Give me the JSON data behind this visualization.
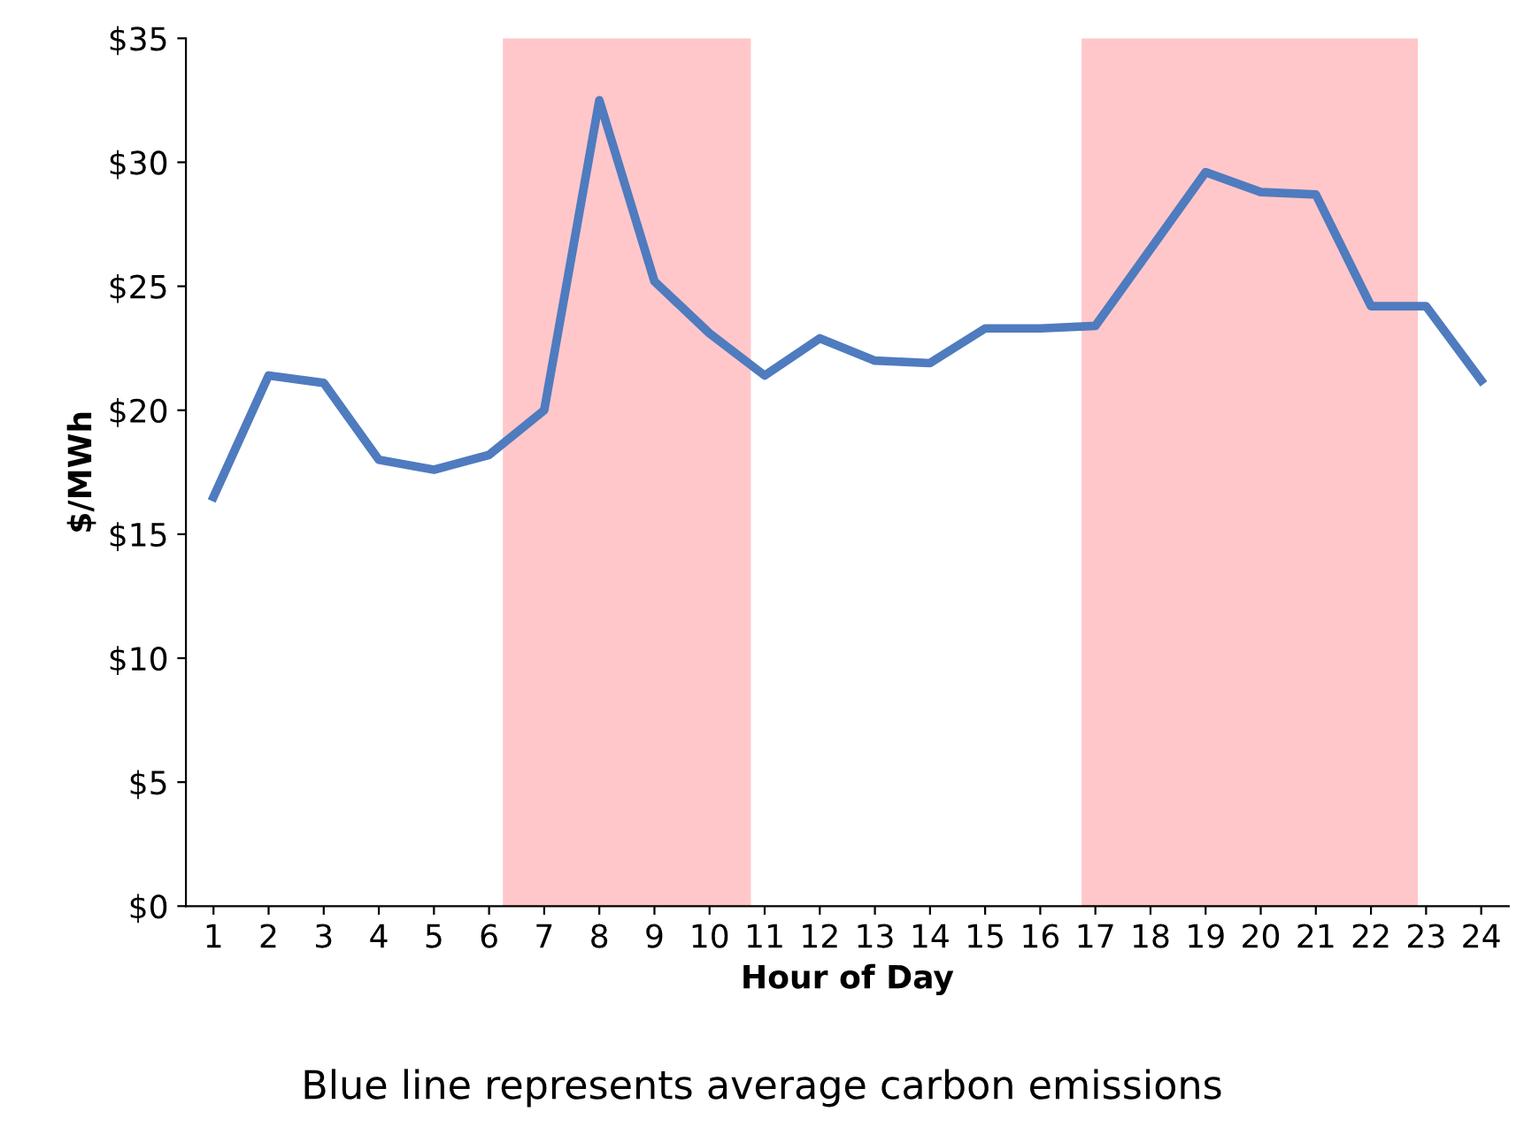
{
  "chart_data": {
    "type": "line",
    "xlabel": "Hour of Day",
    "ylabel": "$/MWh",
    "x": [
      1,
      2,
      3,
      4,
      5,
      6,
      7,
      8,
      9,
      10,
      11,
      12,
      13,
      14,
      15,
      16,
      17,
      18,
      19,
      20,
      21,
      22,
      23,
      24
    ],
    "series": [
      {
        "color": "#4f7bbf",
        "values": [
          16.5,
          21.4,
          21.1,
          18.0,
          17.6,
          18.2,
          20.0,
          32.5,
          25.2,
          23.1,
          21.4,
          22.9,
          22.0,
          21.9,
          23.3,
          23.3,
          23.4,
          26.5,
          29.6,
          28.8,
          28.7,
          24.2,
          24.2,
          21.2
        ]
      }
    ],
    "xlim": [
      0.5,
      24.5
    ],
    "xticks": [
      1,
      2,
      3,
      4,
      5,
      6,
      7,
      8,
      9,
      10,
      11,
      12,
      13,
      14,
      15,
      16,
      17,
      18,
      19,
      20,
      21,
      22,
      23,
      24
    ],
    "ylim": [
      0,
      35
    ],
    "yticks": [
      {
        "value": 0,
        "label": "$0"
      },
      {
        "value": 5,
        "label": "$5"
      },
      {
        "value": 10,
        "label": "$10"
      },
      {
        "value": 15,
        "label": "$15"
      },
      {
        "value": 20,
        "label": "$20"
      },
      {
        "value": 25,
        "label": "$25"
      },
      {
        "value": 30,
        "label": "$30"
      },
      {
        "value": 35,
        "label": "$35"
      }
    ],
    "bands": [
      {
        "axis": "x",
        "from": 6.25,
        "to": 10.75,
        "color": "#ffc7ca"
      },
      {
        "axis": "x",
        "from": 16.75,
        "to": 22.85,
        "color": "#ffc7ca"
      }
    ],
    "grid": false,
    "legend": false,
    "marker": "none",
    "line_style": "solid",
    "annotations": [
      "Blue line represents average carbon emissions"
    ]
  }
}
